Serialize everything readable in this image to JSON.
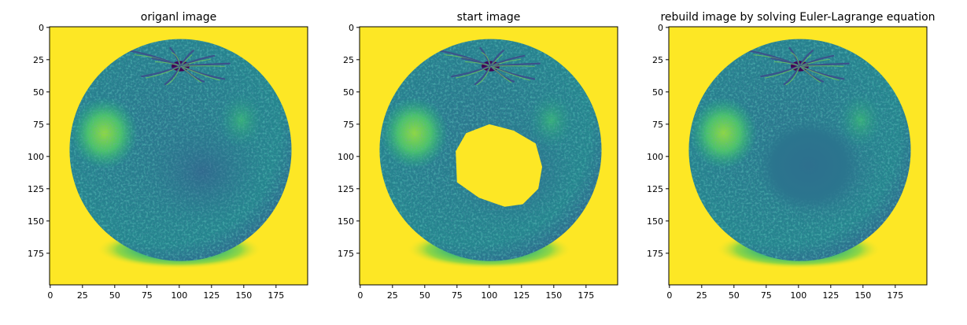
{
  "chart_data": [
    {
      "type": "image",
      "title": "origanl image",
      "xlim": [
        0,
        199
      ],
      "ylim": [
        199,
        0
      ],
      "xticks": [
        0,
        25,
        50,
        75,
        100,
        125,
        150,
        175
      ],
      "yticks": [
        0,
        25,
        50,
        75,
        100,
        125,
        150,
        175
      ],
      "xtick_labels": [
        "0",
        "25",
        "50",
        "75",
        "100",
        "125",
        "150",
        "175"
      ],
      "ytick_labels": [
        "0",
        "25",
        "50",
        "75",
        "100",
        "125",
        "150",
        "175"
      ],
      "image_content": "orange-fruit",
      "missing_region": "none"
    },
    {
      "type": "image",
      "title": "start image",
      "xlim": [
        0,
        199
      ],
      "ylim": [
        199,
        0
      ],
      "xticks": [
        0,
        25,
        50,
        75,
        100,
        125,
        150,
        175
      ],
      "yticks": [
        0,
        25,
        50,
        75,
        100,
        125,
        150,
        175
      ],
      "xtick_labels": [
        "0",
        "25",
        "50",
        "75",
        "100",
        "125",
        "150",
        "175"
      ],
      "ytick_labels": [
        "0",
        "25",
        "50",
        "75",
        "100",
        "125",
        "150",
        "175"
      ],
      "image_content": "orange-fruit",
      "missing_region": "polygon-hole",
      "hole_polygon": [
        [
          100,
          75
        ],
        [
          119,
          80
        ],
        [
          136,
          90
        ],
        [
          141,
          108
        ],
        [
          138,
          125
        ],
        [
          126,
          137
        ],
        [
          112,
          139
        ],
        [
          92,
          132
        ],
        [
          75,
          120
        ],
        [
          74,
          96
        ],
        [
          82,
          82
        ]
      ]
    },
    {
      "type": "image",
      "title": "rebuild image by solving Euler-Lagrange equation",
      "xlim": [
        0,
        199
      ],
      "ylim": [
        199,
        0
      ],
      "xticks": [
        0,
        25,
        50,
        75,
        100,
        125,
        150,
        175
      ],
      "yticks": [
        0,
        25,
        50,
        75,
        100,
        125,
        150,
        175
      ],
      "xtick_labels": [
        "0",
        "25",
        "50",
        "75",
        "100",
        "125",
        "150",
        "175"
      ],
      "ytick_labels": [
        "0",
        "25",
        "50",
        "75",
        "100",
        "125",
        "150",
        "175"
      ],
      "image_content": "orange-fruit",
      "missing_region": "smooth-inpainted"
    }
  ],
  "colors": {
    "background": "#fde725",
    "fruit_dark": "#2f6b8e",
    "fruit_mid": "#238a8d",
    "fruit_light": "#3bbb75",
    "fruit_highlight": "#8fd744",
    "shadow_core": "#1f9e89",
    "inpaint_fill": "#277f8e",
    "hole_fill": "#fde725"
  }
}
